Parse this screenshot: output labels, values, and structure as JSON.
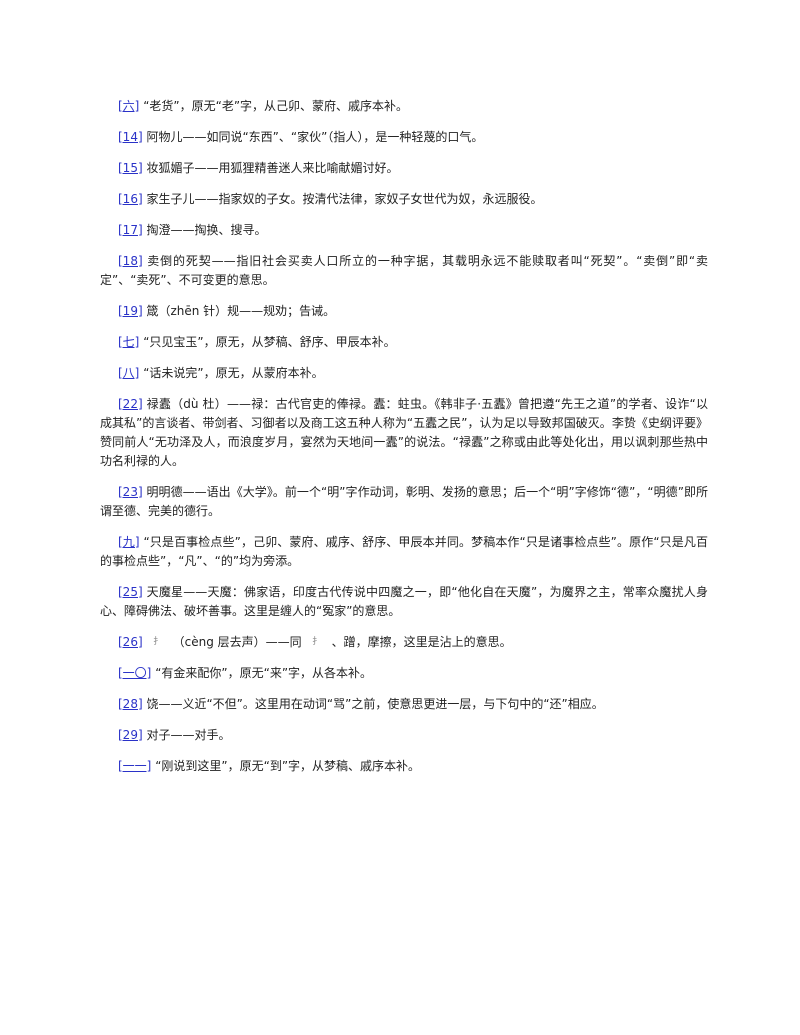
{
  "notes": [
    {
      "ref": "[六]",
      "text": " “老货”，原无“老”字，从己卯、蒙府、戚序本补。"
    },
    {
      "ref": "[14]",
      "text": " 阿物儿——如同说“东西”、“家伙”（指人），是一种轻蔑的口气。"
    },
    {
      "ref": "[15]",
      "text": " 妆狐媚子——用狐狸精善迷人来比喻献媚讨好。"
    },
    {
      "ref": "[16]",
      "text": " 家生子儿——指家奴的子女。按清代法律，家奴子女世代为奴，永远服役。"
    },
    {
      "ref": "[17]",
      "text": " 掏澄——掏换、搜寻。"
    },
    {
      "ref": "[18]",
      "text": " 卖倒的死契——指旧社会买卖人口所立的一种字据，其载明永远不能赎取者叫“死契”。“卖倒”即“卖定”、“卖死”、不可变更的意思。"
    },
    {
      "ref": "[19]",
      "text": " 箴（zhēn 针）规——规劝；告诫。"
    },
    {
      "ref": "[七]",
      "text": " “只见宝玉”，原无，从梦稿、舒序、甲辰本补。"
    },
    {
      "ref": "[八]",
      "text": " “话未说完”，原无，从蒙府本补。"
    },
    {
      "ref": "[22]",
      "text": " 禄蠹（dù 杜）——禄：古代官吏的俸禄。蠹：蛀虫。《韩非子·五蠹》曾把遵“先王之道”的学者、设诈“以成其私”的言谈者、带剑者、习御者以及商工这五种人称为“五蠹之民”，认为足以导致邦国破灭。李贽《史纲评要》赞同前人“无功泽及人，而浪度岁月，宴然为天地间一蠹”的说法。“禄蠹”之称或由此等处化出，用以讽刺那些热中功名利禄的人。"
    },
    {
      "ref": "[23]",
      "text": " 明明德——语出《大学》。前一个“明”字作动词，彰明、发扬的意思；后一个“明”字修饰“德”，“明德”即所谓至德、完美的德行。"
    },
    {
      "ref": "[九]",
      "text": " “只是百事检点些”，己卯、蒙府、戚序、舒序、甲辰本并同。梦稿本作“只是诸事检点些”。原作“只是凡百的事检点些”，“凡”、“的”均为旁添。"
    },
    {
      "ref": "[25]",
      "text": " 天魔星——天魔：佛家语，印度古代传说中四魔之一，即“他化自在天魔”，为魔界之主，常率众魔扰人身心、障碍佛法、破坏善事。这里是缠人的“冤家”的意思。"
    },
    {
      "ref": "[26]",
      "text_a": "（cèng 层去声）——同",
      "text_b": "、蹭，摩擦，这里是沾上的意思。"
    },
    {
      "ref": "[一〇]",
      "text": " “有金来配你”，原无“来”字，从各本补。"
    },
    {
      "ref": "[28]",
      "text": " 饶——义近“不但”。这里用在动词“骂”之前，使意思更进一层，与下句中的“还”相应。"
    },
    {
      "ref": "[29]",
      "text": " 对子——对手。"
    },
    {
      "ref": "[一一]",
      "text": " “刚说到这里”，原无“到”字，从梦稿、戚序本补。"
    }
  ],
  "colors": {
    "link": "#2a32c8",
    "text": "#222222"
  }
}
